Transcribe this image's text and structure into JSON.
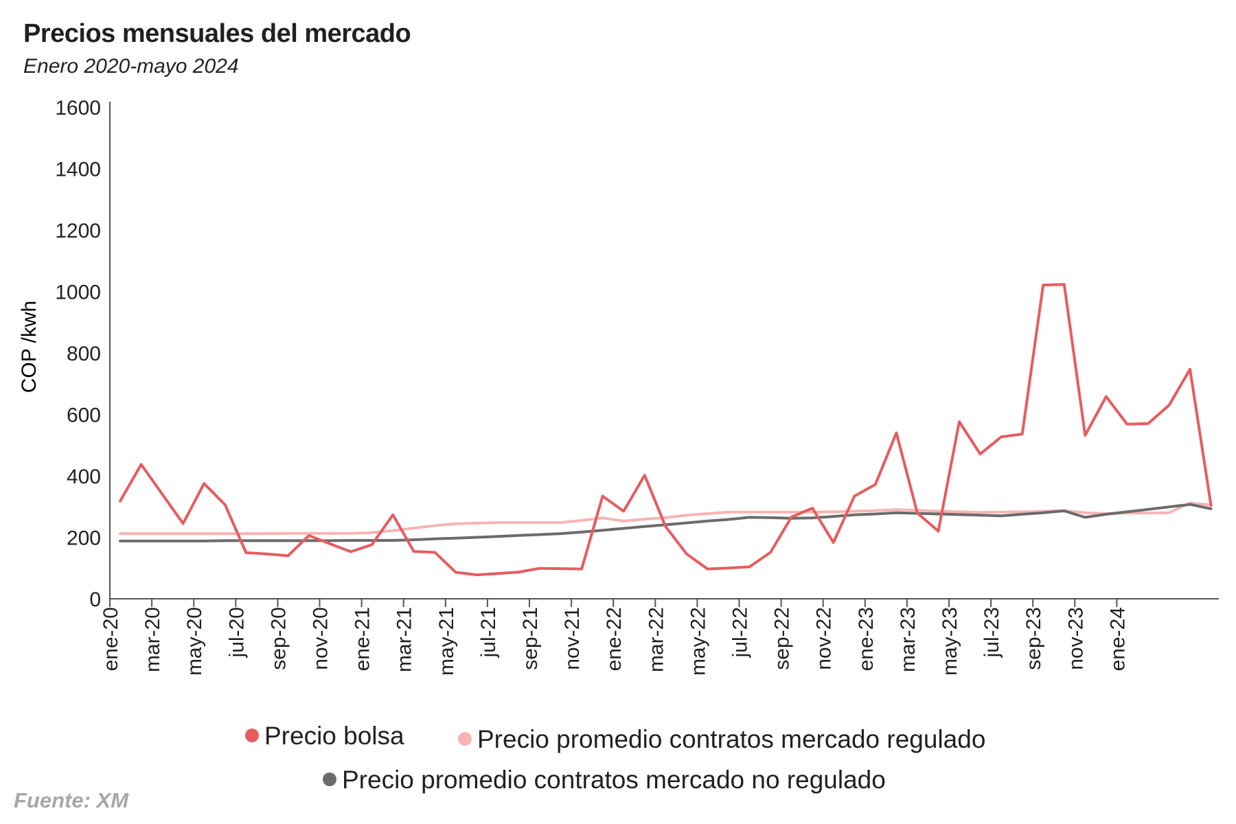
{
  "header": {
    "title": "Precios mensuales del mercado",
    "subtitle": "Enero 2020-mayo 2024"
  },
  "source": "Fuente: XM",
  "colors": {
    "bolsa": "#e65c5f",
    "regulado": "#f5b5b3",
    "no_regulado": "#6b6b6b",
    "axis": "#555555"
  },
  "chart_data": {
    "type": "line",
    "ylabel": "COP /kwh",
    "xlabel": "",
    "ylim": [
      0,
      1600
    ],
    "yticks": [
      0,
      200,
      400,
      600,
      800,
      1000,
      1200,
      1400,
      1600
    ],
    "x_tick_labels": [
      "ene-20",
      "mar-20",
      "may-20",
      "jul-20",
      "sep-20",
      "nov-20",
      "ene-21",
      "mar-21",
      "may-21",
      "jul-21",
      "sep-21",
      "nov-21",
      "ene-22",
      "mar-22",
      "may-22",
      "jul-22",
      "sep-22",
      "nov-22",
      "ene-23",
      "mar-23",
      "may-23",
      "jul-23",
      "sep-23",
      "nov-23",
      "ene-24"
    ],
    "x": [
      "ene-20",
      "feb-20",
      "mar-20",
      "abr-20",
      "may-20",
      "jun-20",
      "jul-20",
      "ago-20",
      "sep-20",
      "oct-20",
      "nov-20",
      "dic-20",
      "ene-21",
      "feb-21",
      "mar-21",
      "abr-21",
      "may-21",
      "jun-21",
      "jul-21",
      "ago-21",
      "sep-21",
      "oct-21",
      "nov-21",
      "dic-21",
      "ene-22",
      "feb-22",
      "mar-22",
      "abr-22",
      "may-22",
      "jun-22",
      "jul-22",
      "ago-22",
      "sep-22",
      "oct-22",
      "nov-22",
      "dic-22",
      "ene-23",
      "feb-23",
      "mar-23",
      "abr-23",
      "may-23",
      "jun-23",
      "jul-23",
      "ago-23",
      "sep-23",
      "oct-23",
      "nov-23",
      "dic-23",
      "ene-24",
      "feb-24",
      "mar-24",
      "abr-24",
      "may-24"
    ],
    "legend_placement": "bottom",
    "grid": false,
    "series": [
      {
        "name": "Precio bolsa",
        "color_key": "bolsa",
        "values": [
          318,
          437,
          341,
          245,
          375,
          306,
          150,
          146,
          140,
          206,
          179,
          153,
          176,
          273,
          154,
          151,
          86,
          78,
          82,
          87,
          99,
          98,
          97,
          334,
          285,
          402,
          235,
          146,
          97,
          100,
          104,
          151,
          266,
          295,
          183,
          334,
          372,
          540,
          279,
          220,
          576,
          471,
          527,
          536,
          1021,
          1023,
          532,
          658,
          568,
          570,
          630,
          747,
          304
        ]
      },
      {
        "name": "Precio promedio contratos mercado regulado",
        "color_key": "regulado",
        "values": [
          212,
          212,
          212,
          212,
          212,
          212,
          212,
          212,
          213,
          213,
          213,
          213,
          215,
          222,
          230,
          238,
          244,
          246,
          248,
          248,
          248,
          248,
          255,
          263,
          253,
          259,
          264,
          272,
          277,
          282,
          282,
          282,
          282,
          282,
          283,
          285,
          287,
          290,
          288,
          285,
          283,
          281,
          282,
          283,
          285,
          287,
          280,
          277,
          279,
          279,
          280,
          312,
          305
        ]
      },
      {
        "name": "Precio promedio contratos mercado no regulado",
        "color_key": "no_regulado",
        "values": [
          188,
          188,
          188,
          188,
          188,
          189,
          189,
          189,
          189,
          189,
          189,
          190,
          190,
          190,
          192,
          195,
          197,
          200,
          203,
          206,
          209,
          212,
          217,
          223,
          229,
          235,
          241,
          247,
          253,
          258,
          265,
          264,
          262,
          263,
          268,
          273,
          276,
          280,
          278,
          276,
          274,
          272,
          270,
          275,
          280,
          286,
          265,
          275,
          283,
          291,
          299,
          307,
          293
        ]
      }
    ]
  }
}
